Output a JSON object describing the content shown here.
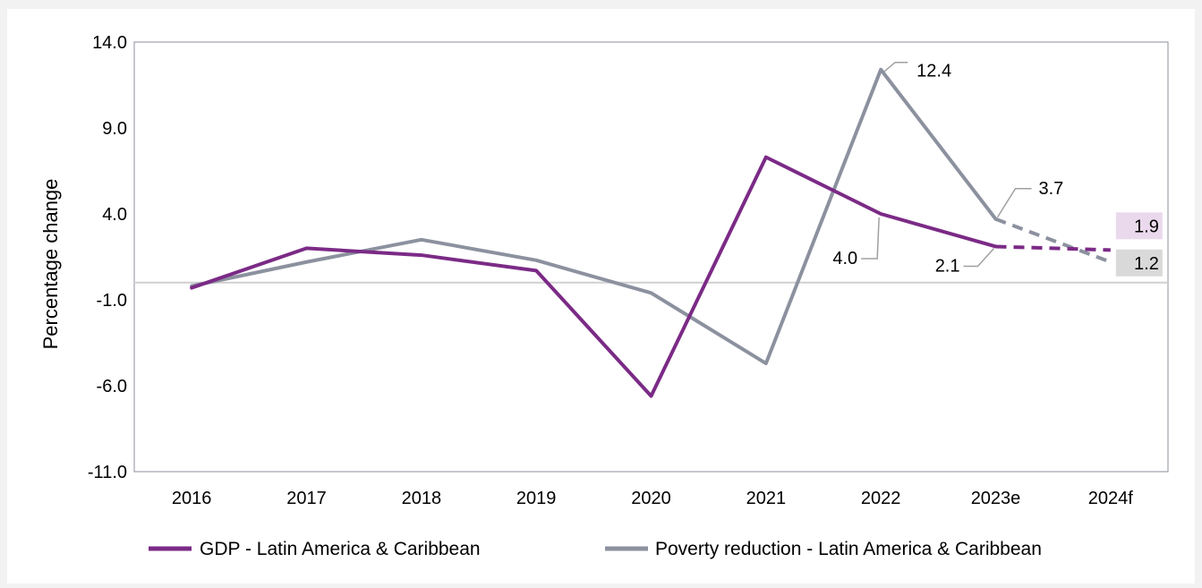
{
  "colors": {
    "gdp": "#7b2a86",
    "poverty": "#8c919f",
    "zero_line": "#d0d0d0",
    "frame": "#8a8f99",
    "label_bg_gdp": "#ead9ec",
    "label_bg_poverty": "#d9d9d9"
  },
  "chart_data": {
    "type": "line",
    "title": "",
    "xlabel": "",
    "ylabel": "Percentage change",
    "ylim": [
      -11.0,
      14.0
    ],
    "yticks": [
      "14.0",
      "9.0",
      "4.0",
      "-1.0",
      "-6.0",
      "-11.0"
    ],
    "categories": [
      "2016",
      "2017",
      "2018",
      "2019",
      "2020",
      "2021",
      "2022",
      "2023e",
      "2024f"
    ],
    "grid": false,
    "legend_position": "bottom",
    "series": [
      {
        "name": "GDP - Latin America & Caribbean",
        "values": [
          -0.3,
          2.0,
          1.6,
          0.7,
          -6.6,
          7.3,
          4.0,
          2.1,
          1.9
        ],
        "forecast_from_index": 7
      },
      {
        "name": "Poverty reduction - Latin America & Caribbean",
        "values": [
          -0.2,
          1.2,
          2.5,
          1.3,
          -0.6,
          -4.7,
          12.4,
          3.7,
          1.2
        ],
        "forecast_from_index": 7
      }
    ],
    "annotations": [
      {
        "series": 1,
        "index": 6,
        "text": "12.4"
      },
      {
        "series": 0,
        "index": 6,
        "text": "4.0"
      },
      {
        "series": 1,
        "index": 7,
        "text": "3.7"
      },
      {
        "series": 0,
        "index": 7,
        "text": "2.1"
      },
      {
        "series": 0,
        "index": 8,
        "text": "1.9"
      },
      {
        "series": 1,
        "index": 8,
        "text": "1.2"
      }
    ]
  }
}
